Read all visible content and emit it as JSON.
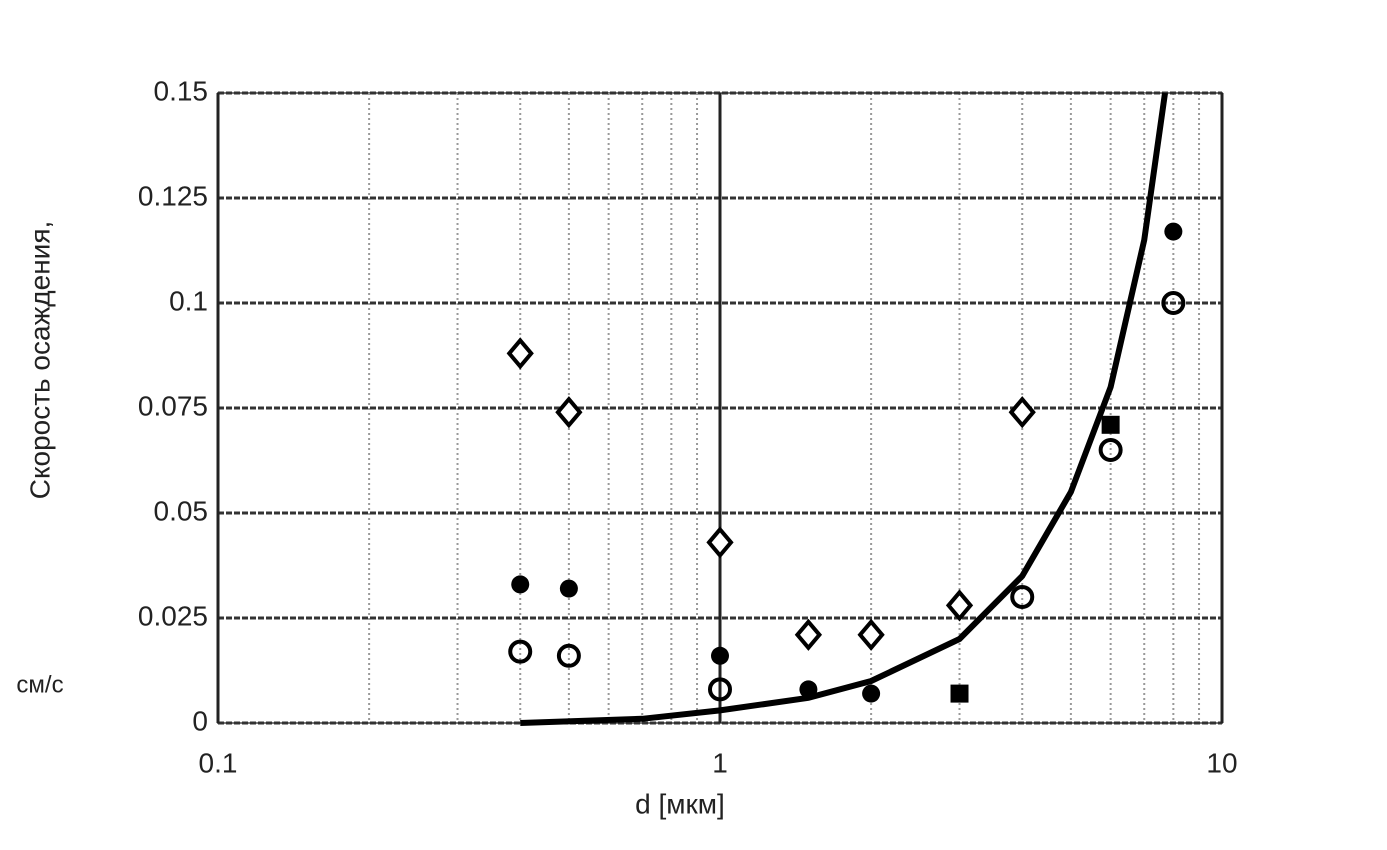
{
  "chart_data": {
    "type": "scatter",
    "x_label": "d [мкм]",
    "y_label": "Скорость осаждения,",
    "y_unit": "см/с",
    "xlim": [
      0.1,
      10
    ],
    "xticks": [
      0.1,
      1,
      10
    ],
    "x_log": true,
    "ylim": [
      0,
      0.15
    ],
    "yticks": [
      0,
      0.025,
      0.05,
      0.075,
      0.1,
      0.125,
      0.15
    ],
    "grid": true,
    "series": [
      {
        "marker": "open-diamond",
        "color": "#000000",
        "x": [
          0.4,
          0.5,
          1,
          1.5,
          2,
          3,
          4
        ],
        "values": [
          0.088,
          0.074,
          0.043,
          0.021,
          0.021,
          0.028,
          0.074
        ]
      },
      {
        "marker": "filled-circle",
        "color": "#000000",
        "x": [
          0.4,
          0.5,
          1,
          1.5,
          2,
          8
        ],
        "values": [
          0.033,
          0.032,
          0.016,
          0.008,
          0.007,
          0.117
        ]
      },
      {
        "marker": "open-circle",
        "color": "#000000",
        "x": [
          0.4,
          0.5,
          1,
          4,
          6,
          8
        ],
        "values": [
          0.017,
          0.016,
          0.008,
          0.03,
          0.065,
          0.1
        ]
      },
      {
        "marker": "filled-square",
        "color": "#000000",
        "x": [
          3,
          6
        ],
        "values": [
          0.007,
          0.071
        ]
      },
      {
        "marker": "line",
        "color": "#000000",
        "x": [
          0.4,
          0.7,
          1,
          1.5,
          2,
          3,
          4,
          5,
          6,
          7,
          7.7
        ],
        "values": [
          0,
          0.001,
          0.003,
          0.006,
          0.01,
          0.02,
          0.035,
          0.055,
          0.08,
          0.115,
          0.15
        ]
      }
    ]
  }
}
